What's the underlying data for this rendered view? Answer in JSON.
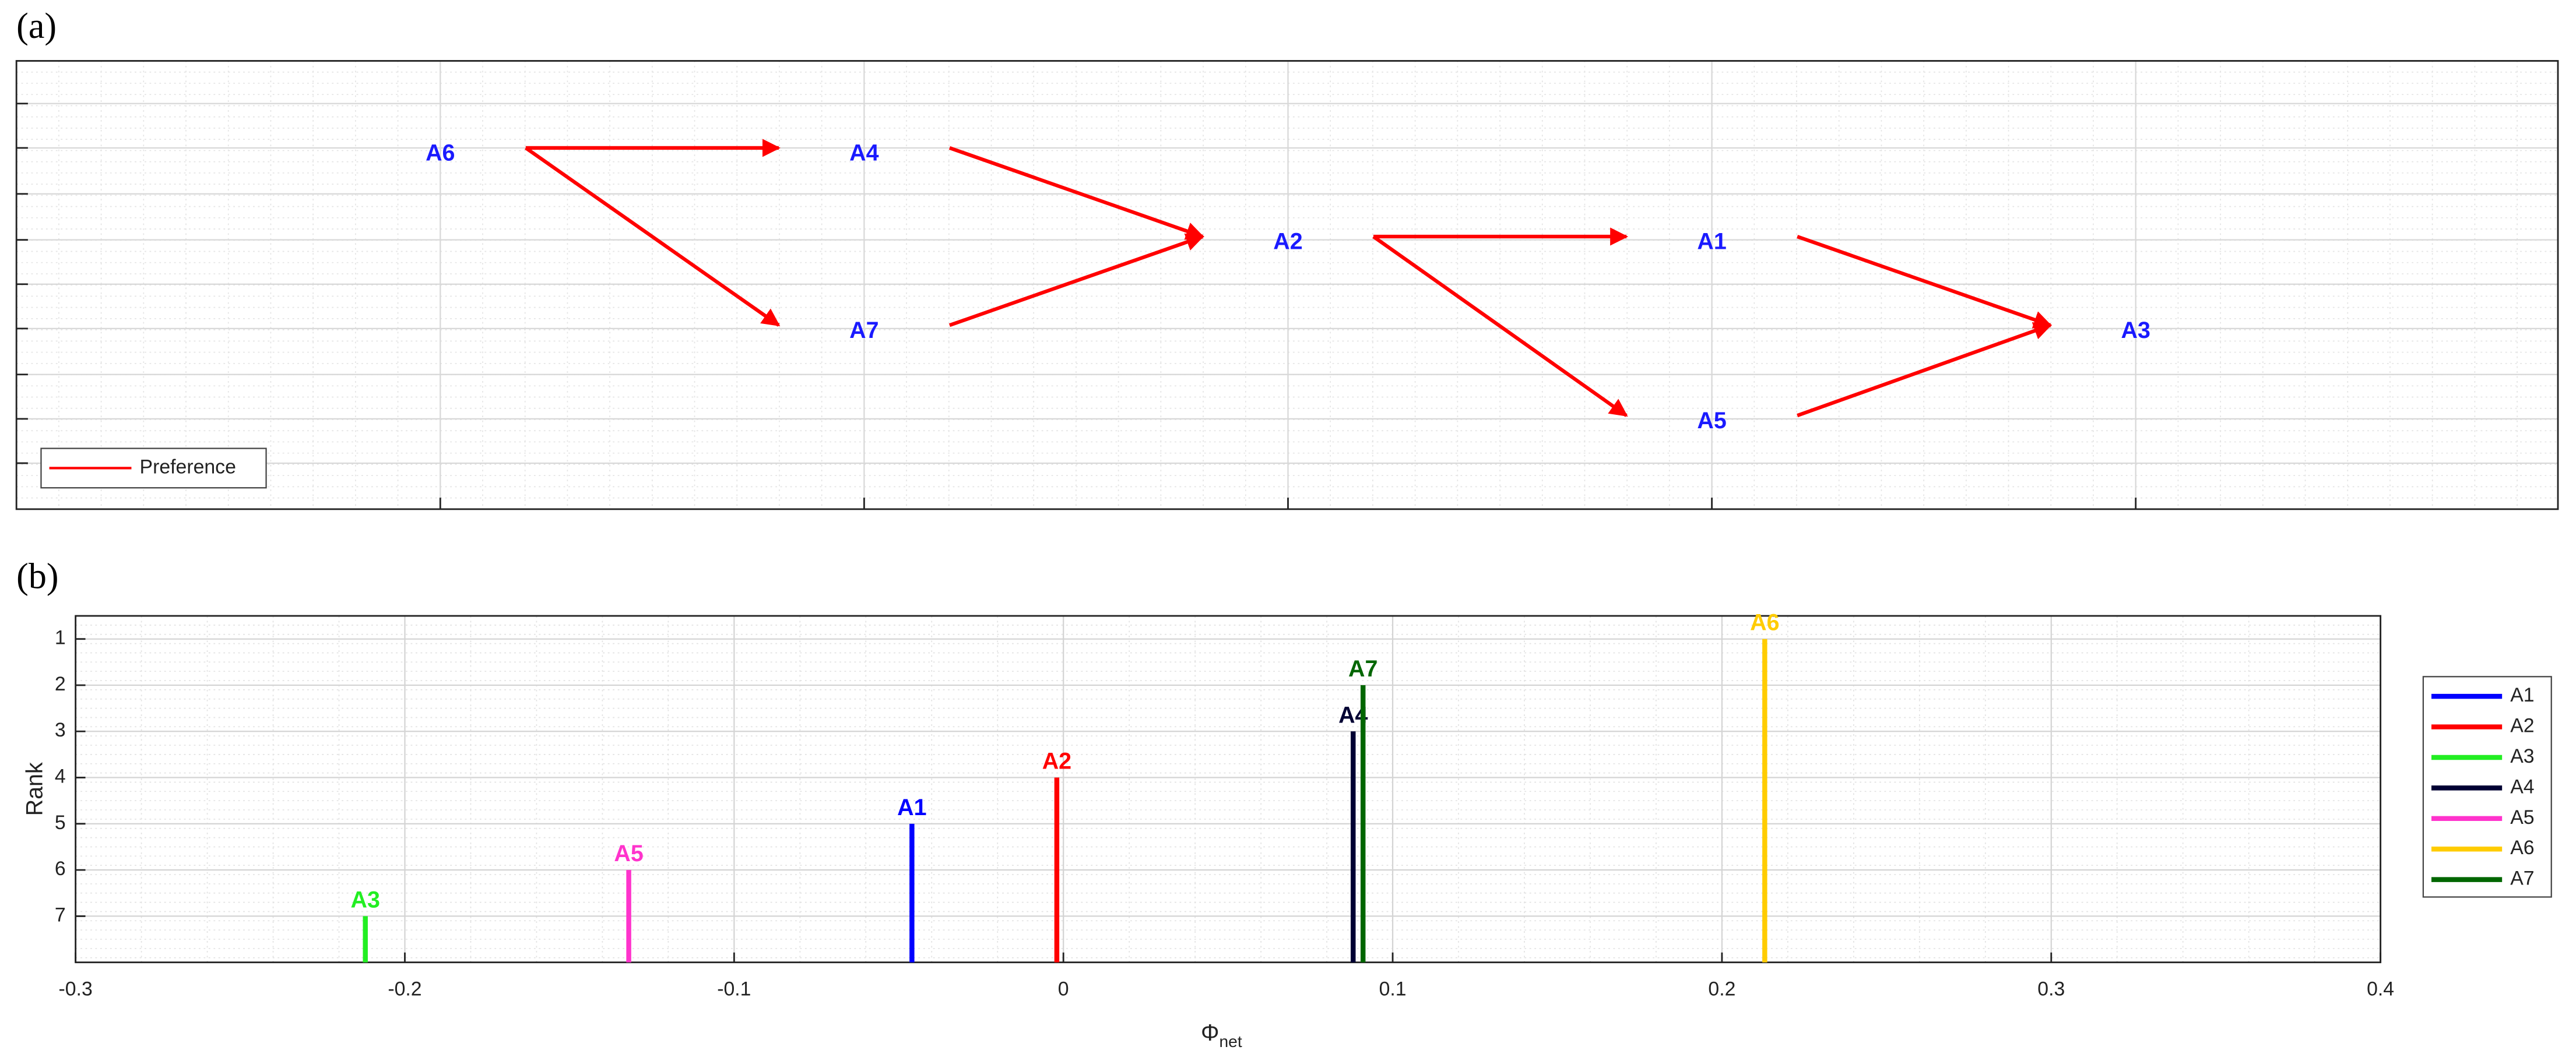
{
  "chart_data": [
    {
      "type": "network",
      "panel": "(a)",
      "nodes": [
        "A6",
        "A4",
        "A7",
        "A2",
        "A1",
        "A5",
        "A3"
      ],
      "edges": [
        [
          0,
          1
        ],
        [
          0,
          2
        ],
        [
          1,
          3
        ],
        [
          2,
          3
        ],
        [
          3,
          4
        ],
        [
          3,
          5
        ],
        [
          4,
          6
        ],
        [
          5,
          6
        ]
      ],
      "edge_name": "Preference",
      "edge_color": "#ff0000",
      "node_color": "#1a1aff",
      "legend": "lower left"
    },
    {
      "type": "stem",
      "panel": "(b)",
      "xlabel": {
        "symbol": "Φ",
        "subscript": "net"
      },
      "ylabel": "Rank",
      "xlim": [
        -0.3,
        0.4
      ],
      "ylim": [
        0.5,
        8
      ],
      "y_reverse": true,
      "xticks": [
        -0.3,
        -0.2,
        -0.1,
        0,
        0.1,
        0.2,
        0.3,
        0.4
      ],
      "yticks": [
        1,
        2,
        3,
        4,
        5,
        6,
        7
      ],
      "grid": true,
      "legend": "right",
      "series": [
        {
          "name": "A1",
          "color": "#0000ff",
          "x": [
            -0.046
          ],
          "values": [
            5
          ]
        },
        {
          "name": "A2",
          "color": "#ff0000",
          "x": [
            -0.002
          ],
          "values": [
            4
          ]
        },
        {
          "name": "A3",
          "color": "#22ee22",
          "x": [
            -0.212
          ],
          "values": [
            7
          ]
        },
        {
          "name": "A4",
          "color": "#000033",
          "x": [
            0.088
          ],
          "values": [
            3
          ]
        },
        {
          "name": "A5",
          "color": "#ff33cc",
          "x": [
            -0.132
          ],
          "values": [
            6
          ]
        },
        {
          "name": "A6",
          "color": "#ffcc00",
          "x": [
            0.213
          ],
          "values": [
            1
          ]
        },
        {
          "name": "A7",
          "color": "#006600",
          "x": [
            0.091
          ],
          "values": [
            2
          ]
        }
      ]
    }
  ]
}
